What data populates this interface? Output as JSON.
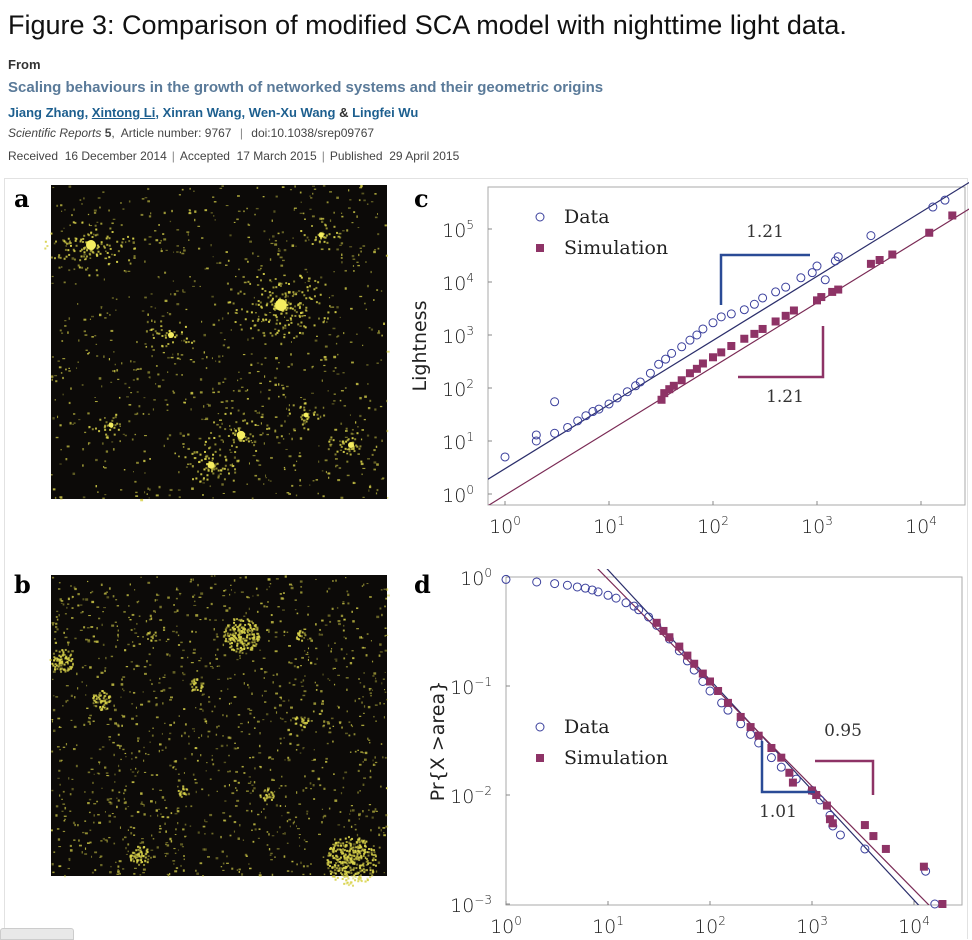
{
  "header": {
    "title": "Figure 3: Comparison of modified SCA model with nighttime light data.",
    "from_label": "From",
    "article_title": "Scaling behaviours in the growth of networked systems and their geometric origins",
    "authors": [
      "Jiang Zhang",
      "Xintong Li",
      "Xinran Wang",
      "Wen-Xu Wang",
      "Lingfei Wu"
    ],
    "author_sep": ", ",
    "author_amp": " & ",
    "journal": "Scientific Reports",
    "volume": "5",
    "article_number": "Article number: 9767",
    "doi": "doi:10.1038/srep09767",
    "received_label": "Received",
    "received": "16 December 2014",
    "accepted_label": "Accepted",
    "accepted": "17 March 2015",
    "published_label": "Published",
    "published": "29 April 2015"
  },
  "panels": {
    "a": {
      "letter": "a",
      "content": "nighttime light image"
    },
    "b": {
      "letter": "b",
      "content": "simulated clusters image"
    }
  },
  "colors": {
    "data": "#3a3f9c",
    "simulation": "#8e3366",
    "fit_data": "#2b2e6b",
    "fit_sim": "#7a2a55",
    "image_bg": "#0c0a08",
    "image_fg": "#d8d24a"
  },
  "chart_data": [
    {
      "panel": "c",
      "type": "scatter",
      "xscale": "log",
      "yscale": "log",
      "xlim": [
        0.85,
        25000
      ],
      "ylim": [
        0.75,
        700000
      ],
      "xticks": [
        "10^0",
        "10^1",
        "10^2",
        "10^3",
        "10^4"
      ],
      "yticks": [
        "10^0",
        "10^1",
        "10^2",
        "10^3",
        "10^4",
        "10^5"
      ],
      "xlabel": "",
      "ylabel": "Lightness",
      "legend": {
        "placement": "top-left",
        "entries": [
          "Data",
          "Simulation"
        ]
      },
      "series": [
        {
          "name": "Data",
          "marker": "open-circle",
          "points": [
            [
              1,
              5
            ],
            [
              2,
              10
            ],
            [
              2,
              13
            ],
            [
              3,
              55
            ],
            [
              3,
              14
            ],
            [
              4,
              18
            ],
            [
              5,
              24
            ],
            [
              6,
              30
            ],
            [
              7,
              36
            ],
            [
              8,
              40
            ],
            [
              10,
              50
            ],
            [
              12,
              65
            ],
            [
              15,
              85
            ],
            [
              18,
              110
            ],
            [
              20,
              130
            ],
            [
              25,
              190
            ],
            [
              30,
              280
            ],
            [
              35,
              350
            ],
            [
              40,
              450
            ],
            [
              50,
              600
            ],
            [
              60,
              800
            ],
            [
              70,
              1000
            ],
            [
              80,
              1300
            ],
            [
              100,
              1700
            ],
            [
              120,
              2200
            ],
            [
              150,
              2500
            ],
            [
              200,
              3000
            ],
            [
              250,
              3800
            ],
            [
              300,
              5000
            ],
            [
              400,
              6500
            ],
            [
              500,
              8000
            ],
            [
              700,
              12000
            ],
            [
              900,
              15000
            ],
            [
              1000,
              20000
            ],
            [
              1200,
              11000
            ],
            [
              1500,
              25000
            ],
            [
              1600,
              30000
            ],
            [
              3300,
              75000
            ],
            [
              13000,
              260000
            ],
            [
              17000,
              350000
            ]
          ]
        },
        {
          "name": "Simulation",
          "marker": "filled-square",
          "points": [
            [
              32,
              60
            ],
            [
              34,
              80
            ],
            [
              38,
              95
            ],
            [
              42,
              110
            ],
            [
              50,
              140
            ],
            [
              60,
              190
            ],
            [
              70,
              230
            ],
            [
              80,
              290
            ],
            [
              100,
              380
            ],
            [
              120,
              470
            ],
            [
              150,
              620
            ],
            [
              200,
              850
            ],
            [
              250,
              1050
            ],
            [
              300,
              1300
            ],
            [
              400,
              1800
            ],
            [
              500,
              2300
            ],
            [
              600,
              2900
            ],
            [
              1000,
              4500
            ],
            [
              1100,
              5200
            ],
            [
              1400,
              6500
            ],
            [
              1600,
              7200
            ],
            [
              3300,
              22000
            ],
            [
              4000,
              26000
            ],
            [
              5300,
              33000
            ],
            [
              12000,
              85000
            ],
            [
              20000,
              180000
            ]
          ]
        }
      ],
      "fits": [
        {
          "series": "Data",
          "slope": 1.21,
          "intercept": 3.0
        },
        {
          "series": "Simulation",
          "slope": 1.21,
          "intercept": 0.95
        }
      ],
      "annotations": [
        {
          "text": "1.21",
          "series": "Data"
        },
        {
          "text": "1.21",
          "series": "Simulation"
        }
      ]
    },
    {
      "panel": "d",
      "type": "scatter",
      "xscale": "log",
      "yscale": "log",
      "xlim": [
        1,
        30000
      ],
      "ylim": [
        0.001,
        1
      ],
      "xticks": [
        "10^0",
        "10^1",
        "10^2",
        "10^3",
        "10^4"
      ],
      "yticks": [
        "10^0",
        "10^-1",
        "10^-2",
        "10^-3"
      ],
      "xlabel": "",
      "ylabel": "Pr{X >area}",
      "legend": {
        "placement": "center-left",
        "entries": [
          "Data",
          "Simulation"
        ]
      },
      "series": [
        {
          "name": "Data",
          "marker": "open-circle",
          "points": [
            [
              1,
              0.95
            ],
            [
              2,
              0.9
            ],
            [
              3,
              0.87
            ],
            [
              4,
              0.84
            ],
            [
              5,
              0.81
            ],
            [
              6,
              0.79
            ],
            [
              7,
              0.76
            ],
            [
              8,
              0.73
            ],
            [
              10,
              0.68
            ],
            [
              12,
              0.64
            ],
            [
              15,
              0.58
            ],
            [
              18,
              0.54
            ],
            [
              20,
              0.5
            ],
            [
              25,
              0.43
            ],
            [
              30,
              0.36
            ],
            [
              40,
              0.27
            ],
            [
              50,
              0.21
            ],
            [
              60,
              0.17
            ],
            [
              70,
              0.14
            ],
            [
              85,
              0.11
            ],
            [
              100,
              0.09
            ],
            [
              130,
              0.07
            ],
            [
              150,
              0.06
            ],
            [
              200,
              0.045
            ],
            [
              250,
              0.036
            ],
            [
              300,
              0.03
            ],
            [
              400,
              0.022
            ],
            [
              500,
              0.018
            ],
            [
              700,
              0.014
            ],
            [
              1000,
              0.011
            ],
            [
              1200,
              0.009
            ],
            [
              1500,
              0.0065
            ],
            [
              1600,
              0.0052
            ],
            [
              1900,
              0.0043
            ],
            [
              3300,
              0.0032
            ],
            [
              13000,
              0.002
            ],
            [
              16000,
              0.001
            ]
          ]
        },
        {
          "name": "Simulation",
          "marker": "filled-square",
          "points": [
            [
              30,
              0.38
            ],
            [
              35,
              0.32
            ],
            [
              40,
              0.28
            ],
            [
              50,
              0.23
            ],
            [
              60,
              0.19
            ],
            [
              70,
              0.16
            ],
            [
              85,
              0.13
            ],
            [
              100,
              0.11
            ],
            [
              120,
              0.09
            ],
            [
              150,
              0.07
            ],
            [
              200,
              0.052
            ],
            [
              250,
              0.042
            ],
            [
              300,
              0.035
            ],
            [
              400,
              0.027
            ],
            [
              500,
              0.022
            ],
            [
              600,
              0.016
            ],
            [
              650,
              0.013
            ],
            [
              1000,
              0.011
            ],
            [
              1100,
              0.01
            ],
            [
              1400,
              0.008
            ],
            [
              1500,
              0.006
            ],
            [
              1600,
              0.0055
            ],
            [
              3300,
              0.0053
            ],
            [
              4000,
              0.0042
            ],
            [
              5300,
              0.0032
            ],
            [
              12500,
              0.0022
            ],
            [
              19000,
              0.001
            ]
          ]
        }
      ],
      "fits": [
        {
          "series": "Data",
          "slope": -1.01,
          "intercept": 11.9
        },
        {
          "series": "Simulation",
          "slope": -0.95,
          "intercept": 8.5
        }
      ],
      "annotations": [
        {
          "text": "1.01",
          "series": "Data"
        },
        {
          "text": "0.95",
          "series": "Simulation"
        }
      ]
    }
  ]
}
